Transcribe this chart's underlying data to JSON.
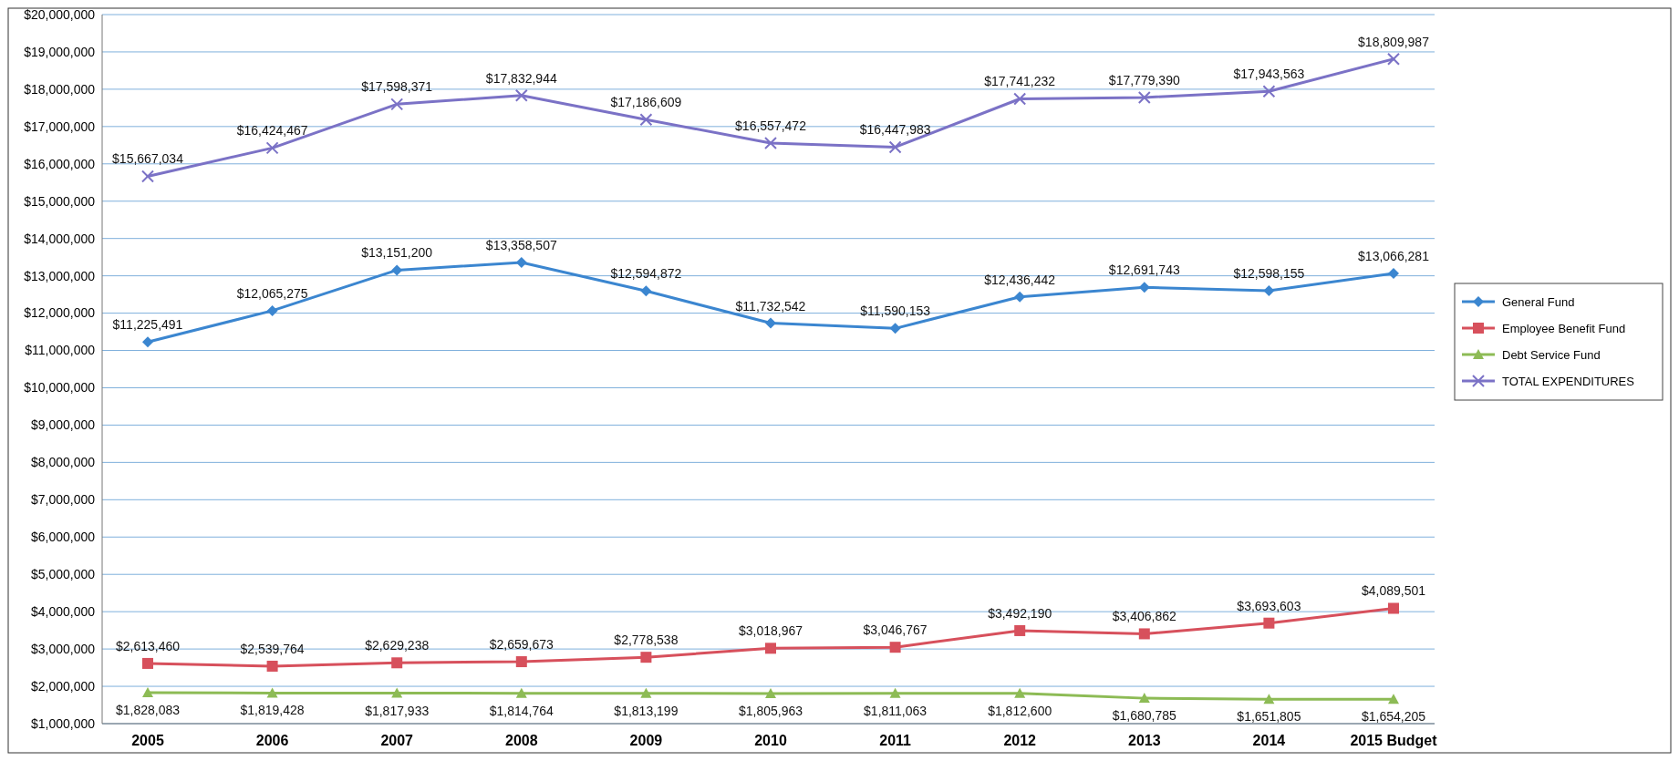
{
  "chart_data": {
    "type": "line",
    "categories": [
      "2005",
      "2006",
      "2007",
      "2008",
      "2009",
      "2010",
      "2011",
      "2012",
      "2013",
      "2014",
      "2015 Budget"
    ],
    "series": [
      {
        "name": "General Fund",
        "color": "#3b86d0",
        "marker": "diamond",
        "values": [
          11225491,
          12065275,
          13151200,
          13358507,
          12594872,
          11732542,
          11590153,
          12436442,
          12691743,
          12598155,
          13066281
        ],
        "value_labels": [
          "$11,225,491",
          "$12,065,275",
          "$13,151,200",
          "$13,358,507",
          "$12,594,872",
          "$11,732,542",
          "$11,590,153",
          "$12,436,442",
          "$12,691,743",
          "$12,598,155",
          "$13,066,281"
        ]
      },
      {
        "name": "Employee Benefit Fund",
        "color": "#d7505c",
        "marker": "square",
        "values": [
          2613460,
          2539764,
          2629238,
          2659673,
          2778538,
          3018967,
          3046767,
          3492190,
          3406862,
          3693603,
          4089501
        ],
        "value_labels": [
          "$2,613,460",
          "$2,539,764",
          "$2,629,238",
          "$2,659,673",
          "$2,778,538",
          "$3,018,967",
          "$3,046,767",
          "$3,492,190",
          "$3,406,862",
          "$3,693,603",
          "$4,089,501"
        ]
      },
      {
        "name": "Debt Service Fund",
        "color": "#8dbb55",
        "marker": "triangle",
        "values": [
          1828083,
          1819428,
          1817933,
          1814764,
          1813199,
          1805963,
          1811063,
          1812600,
          1680785,
          1651805,
          1654205
        ],
        "value_labels": [
          "$1,828,083",
          "$1,819,428",
          "$1,817,933",
          "$1,814,764",
          "$1,813,199",
          "$1,805,963",
          "$1,811,063",
          "$1,812,600",
          "$1,680,785",
          "$1,651,805",
          "$1,654,205"
        ]
      },
      {
        "name": "TOTAL EXPENDITURES",
        "color": "#7b72c6",
        "marker": "cross",
        "values": [
          15667034,
          16424467,
          17598371,
          17832944,
          17186609,
          16557472,
          16447983,
          17741232,
          17779390,
          17943563,
          18809987
        ],
        "value_labels": [
          "$15,667,034",
          "$16,424,467",
          "$17,598,371",
          "$17,832,944",
          "$17,186,609",
          "$16,557,472",
          "$16,447,983",
          "$17,741,232",
          "$17,779,390",
          "$17,943,563",
          "$18,809,987"
        ]
      }
    ],
    "ylim": [
      1000000,
      20000000
    ],
    "yticks": [
      {
        "value": 1000000,
        "label": "$1,000,000"
      },
      {
        "value": 2000000,
        "label": "$2,000,000"
      },
      {
        "value": 3000000,
        "label": "$3,000,000"
      },
      {
        "value": 4000000,
        "label": "$4,000,000"
      },
      {
        "value": 5000000,
        "label": "$5,000,000"
      },
      {
        "value": 6000000,
        "label": "$6,000,000"
      },
      {
        "value": 7000000,
        "label": "$7,000,000"
      },
      {
        "value": 8000000,
        "label": "$8,000,000"
      },
      {
        "value": 9000000,
        "label": "$9,000,000"
      },
      {
        "value": 10000000,
        "label": "$10,000,000"
      },
      {
        "value": 11000000,
        "label": "$11,000,000"
      },
      {
        "value": 12000000,
        "label": "$12,000,000"
      },
      {
        "value": 13000000,
        "label": "$13,000,000"
      },
      {
        "value": 14000000,
        "label": "$14,000,000"
      },
      {
        "value": 15000000,
        "label": "$15,000,000"
      },
      {
        "value": 16000000,
        "label": "$16,000,000"
      },
      {
        "value": 17000000,
        "label": "$17,000,000"
      },
      {
        "value": 18000000,
        "label": "$18,000,000"
      },
      {
        "value": 19000000,
        "label": "$19,000,000"
      },
      {
        "value": 20000000,
        "label": "$20,000,000"
      }
    ],
    "grid": "y",
    "legend": "right"
  }
}
